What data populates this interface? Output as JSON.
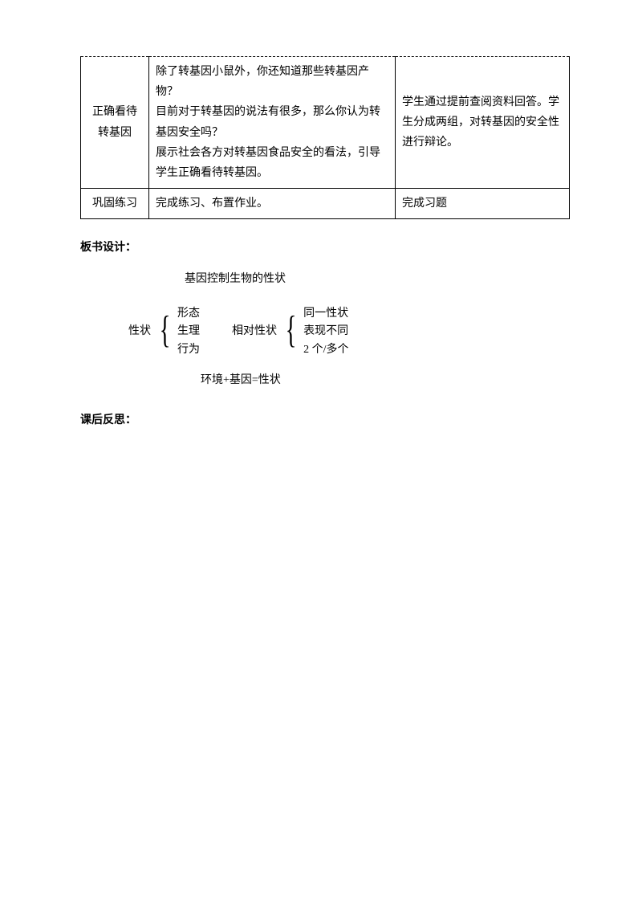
{
  "table": {
    "row1": {
      "col1": "正确看待转基因",
      "col2": "除了转基因小鼠外，你还知道那些转基因产物？\n目前对于转基因的说法有很多，那么你认为转基因安全吗？\n展示社会各方对转基因食品安全的看法，引导学生正确看待转基因。",
      "col3": "学生通过提前查阅资料回答。学生分成两组，对转基因的安全性进行辩论。"
    },
    "row2": {
      "col1": "巩固练习",
      "col2": "完成练习、布置作业。",
      "col3": "完成习题"
    }
  },
  "headings": {
    "board_design": "板书设计：",
    "reflection": "课后反思："
  },
  "board": {
    "title": "基因控制生物的性状",
    "left_label": "性状",
    "left_items": [
      "形态",
      "生理",
      "行为"
    ],
    "right_label": "相对性状",
    "right_items": [
      "同一性状",
      "表现不同",
      "2 个/多个"
    ],
    "formula": "环境+基因=性状"
  }
}
